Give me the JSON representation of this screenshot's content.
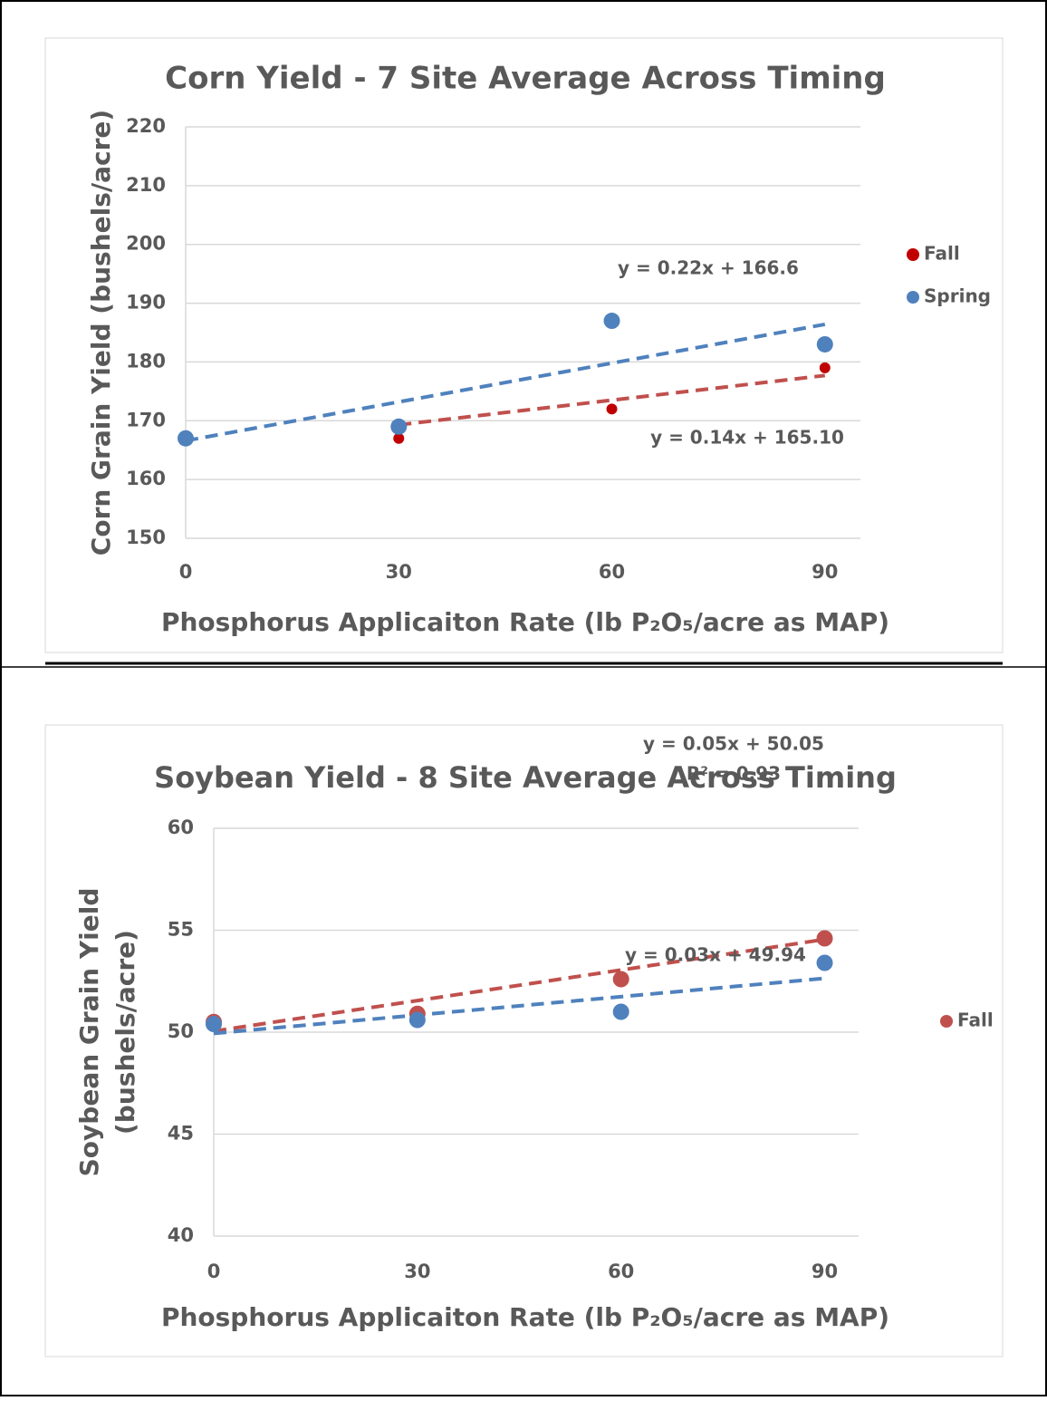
{
  "chart_data": [
    {
      "type": "scatter",
      "title": "Corn Yield - 7 Site Average Across Timing",
      "ylabel": "Corn Grain Yield (bushels/acre)",
      "xlabel": "Phosphorus Applicaiton Rate (lb P₂O₅/acre as MAP)",
      "xlim": [
        0,
        95
      ],
      "xticks": [
        0,
        30,
        60,
        90
      ],
      "ylim": [
        150,
        220
      ],
      "yticks": [
        150,
        160,
        170,
        180,
        190,
        200,
        210,
        220
      ],
      "grid": true,
      "legend": "right",
      "series": [
        {
          "name": "Fall",
          "color": "#c00000",
          "x": [
            30,
            60,
            90
          ],
          "values": [
            167,
            172,
            179
          ],
          "trendline": {
            "color": "#c0504d",
            "slope": 0.14,
            "intercept": 165.1,
            "label": "y = 0.14x + 165.10"
          }
        },
        {
          "name": "Spring",
          "color": "#4f81bd",
          "x": [
            0,
            30,
            60,
            90
          ],
          "values": [
            167,
            169,
            187,
            183
          ],
          "trendline": {
            "color": "#4f81bd",
            "slope": 0.22,
            "intercept": 166.6,
            "label": "y = 0.22x + 166.6"
          }
        }
      ]
    },
    {
      "type": "scatter",
      "title": "Soybean Yield - 8 Site Average Across Timing",
      "ylabel": [
        "Soybean Grain Yield",
        "(bushels/acre)"
      ],
      "xlabel": "Phosphorus Applicaiton Rate (lb P₂O₅/acre as MAP)",
      "xlim": [
        0,
        95
      ],
      "xticks": [
        0,
        30,
        60,
        90
      ],
      "ylim": [
        40,
        60
      ],
      "yticks": [
        40,
        45,
        50,
        55,
        60
      ],
      "grid": true,
      "legend": "right",
      "series": [
        {
          "name": "Fall",
          "color": "#c0504d",
          "x": [
            0,
            30,
            60,
            90
          ],
          "values": [
            50.5,
            50.9,
            52.6,
            54.6
          ],
          "trendline": {
            "color": "#c0504d",
            "slope": 0.05,
            "intercept": 50.05,
            "label": "y = 0.05x + 50.05",
            "r2_label": "R² = 0.93"
          }
        },
        {
          "color": "#4f81bd",
          "x": [
            0,
            30,
            60,
            90
          ],
          "values": [
            50.4,
            50.6,
            51.0,
            53.4
          ],
          "trendline": {
            "color": "#4f81bd",
            "slope": 0.03,
            "intercept": 49.94,
            "label": "y = 0.03x + 49.94"
          }
        }
      ]
    }
  ]
}
